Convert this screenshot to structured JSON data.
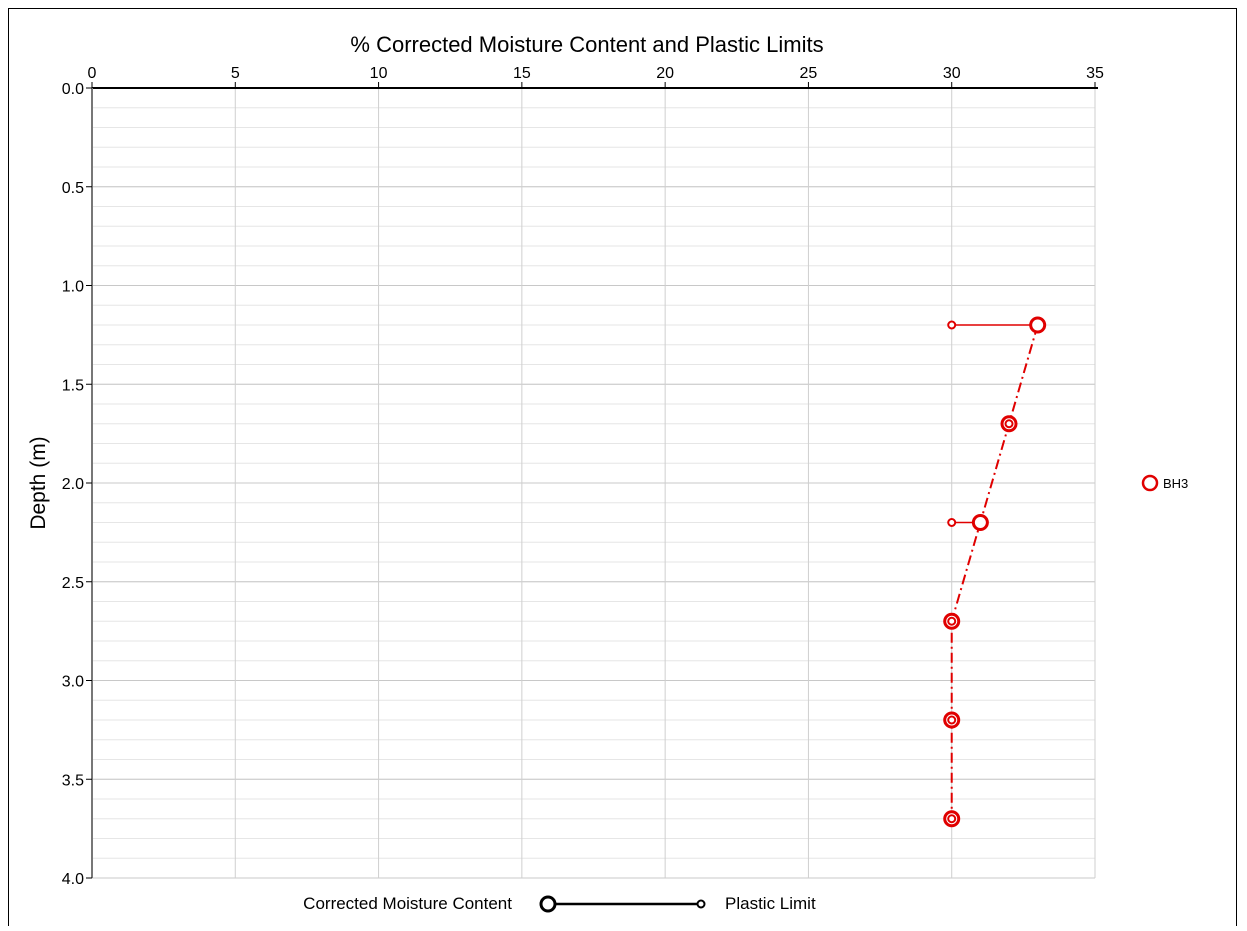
{
  "chart_data": {
    "type": "scatter",
    "title": "% Corrected Moisture Content and Plastic Limits",
    "xlabel": "",
    "ylabel": "Depth (m)",
    "x_axis_position": "top",
    "y_axis_inverted": true,
    "xlim": [
      0,
      35
    ],
    "ylim": [
      0,
      4.0
    ],
    "x_ticks": [
      "0",
      "5",
      "10",
      "15",
      "20",
      "25",
      "30",
      "35"
    ],
    "y_ticks": [
      "0.0",
      "0.5",
      "1.0",
      "1.5",
      "2.0",
      "2.5",
      "3.0",
      "3.5",
      "4.0"
    ],
    "x_tick_values": [
      0,
      5,
      10,
      15,
      20,
      25,
      30,
      35
    ],
    "y_tick_values": [
      0,
      0.5,
      1.0,
      1.5,
      2.0,
      2.5,
      3.0,
      3.5,
      4.0
    ],
    "grid": true,
    "series": [
      {
        "name": "BH3",
        "color": "#e00000",
        "points": [
          {
            "depth": 1.2,
            "moisture": 33,
            "plastic_limit": 30
          },
          {
            "depth": 1.7,
            "moisture": 32,
            "plastic_limit": 32
          },
          {
            "depth": 2.2,
            "moisture": 31,
            "plastic_limit": 30
          },
          {
            "depth": 2.7,
            "moisture": 30,
            "plastic_limit": 30
          },
          {
            "depth": 3.2,
            "moisture": 30,
            "plastic_limit": 30
          },
          {
            "depth": 3.7,
            "moisture": 30,
            "plastic_limit": 30
          }
        ]
      }
    ],
    "legend": {
      "placement": "right",
      "entries": [
        {
          "label": "BH3",
          "color": "#e00000"
        }
      ]
    },
    "key": {
      "left_label": "Corrected Moisture Content",
      "right_label": "Plastic Limit"
    }
  }
}
